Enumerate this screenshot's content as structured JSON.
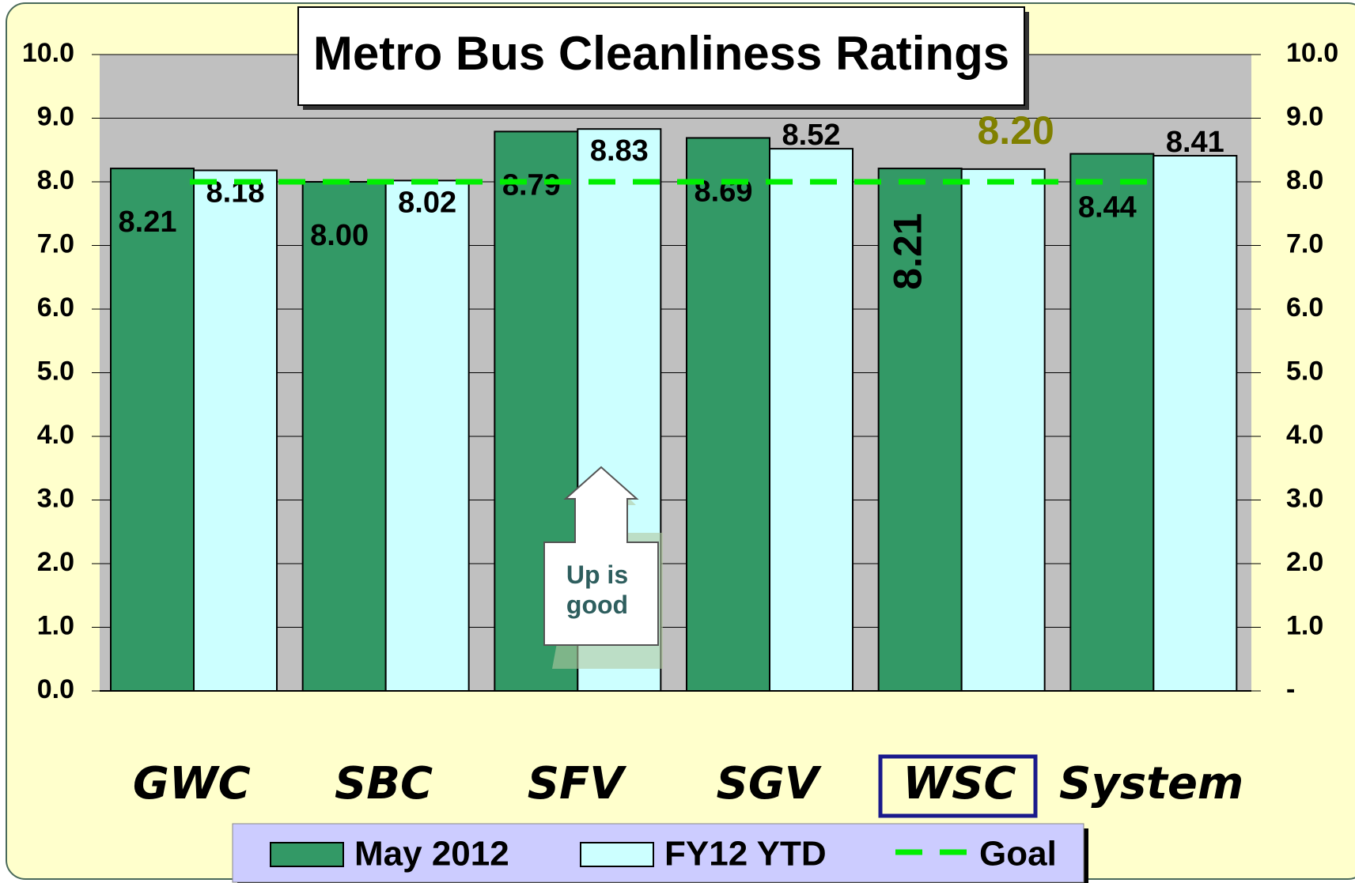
{
  "chart_data": {
    "type": "bar",
    "title": "Metro Bus Cleanliness Ratings",
    "categories": [
      "GWC",
      "SBC",
      "SFV",
      "SGV",
      "WSC",
      "System"
    ],
    "highlight": "WSC",
    "series": [
      {
        "name": "May 2012",
        "color": "#339966",
        "values": [
          8.21,
          8.0,
          8.79,
          8.69,
          8.21,
          8.44
        ],
        "value_labels": [
          "8.21",
          "8.00",
          "8.79",
          "8.69",
          "8.21",
          "8.44"
        ]
      },
      {
        "name": "FY12 YTD",
        "color": "#ccffff",
        "values": [
          8.18,
          8.02,
          8.83,
          8.52,
          8.2,
          8.41
        ],
        "value_labels": [
          "8.18",
          "8.02",
          "8.83",
          "8.52",
          "8.20",
          "8.41"
        ]
      }
    ],
    "goal": {
      "name": "Goal",
      "value": 8,
      "color": "#00ee00"
    },
    "ylim": [
      0,
      10
    ],
    "yticks": [
      {
        "value": 0,
        "label": "0.0"
      },
      {
        "value": 1,
        "label": "1.0"
      },
      {
        "value": 2,
        "label": "2.0"
      },
      {
        "value": 3,
        "label": "3.0"
      },
      {
        "value": 4,
        "label": "4.0"
      },
      {
        "value": 5,
        "label": "5.0"
      },
      {
        "value": 6,
        "label": "6.0"
      },
      {
        "value": 7,
        "label": "7.0"
      },
      {
        "value": 8,
        "label": "8.0"
      },
      {
        "value": 9,
        "label": "9.0"
      },
      {
        "value": 10,
        "label": "10.0"
      }
    ],
    "y2lim": [
      0,
      10
    ],
    "y2ticks": [
      {
        "value": 0,
        "label": "-"
      },
      {
        "value": 1,
        "label": "1.0"
      },
      {
        "value": 2,
        "label": "2.0"
      },
      {
        "value": 3,
        "label": "3.0"
      },
      {
        "value": 4,
        "label": "4.0"
      },
      {
        "value": 5,
        "label": "5.0"
      },
      {
        "value": 6,
        "label": "6.0"
      },
      {
        "value": 7,
        "label": "7.0"
      },
      {
        "value": 8,
        "label": "8.0"
      },
      {
        "value": 9,
        "label": "9.0"
      },
      {
        "value": 10,
        "label": "10.0"
      }
    ],
    "grid": true,
    "annotation": "Up is good"
  }
}
